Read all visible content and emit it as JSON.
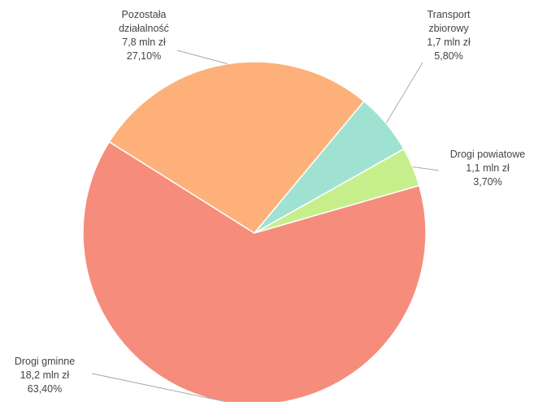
{
  "chart_data": {
    "type": "pie",
    "title": "",
    "start_angle_deg": 60.6,
    "direction": "clockwise",
    "slices": [
      {
        "label": "Drogi powiatowe",
        "value_label": "1,1 mln zł",
        "percent_label": "3,70%",
        "value": 1.1,
        "percent": 3.7,
        "color": "#c6ef8c"
      },
      {
        "label": "Drogi gminne",
        "value_label": "18,2 mln zł",
        "percent_label": "63,40%",
        "value": 18.2,
        "percent": 63.4,
        "color": "#f68c7b"
      },
      {
        "label": "Pozostała działalność",
        "value_label": "7,8 mln zł",
        "percent_label": "27,10%",
        "value": 7.8,
        "percent": 27.1,
        "color": "#fdb07a"
      },
      {
        "label": "Transport zbiorowy",
        "value_label": "1,7 mln zł",
        "percent_label": "5,80%",
        "value": 1.7,
        "percent": 5.8,
        "color": "#a0e2d2"
      }
    ]
  }
}
